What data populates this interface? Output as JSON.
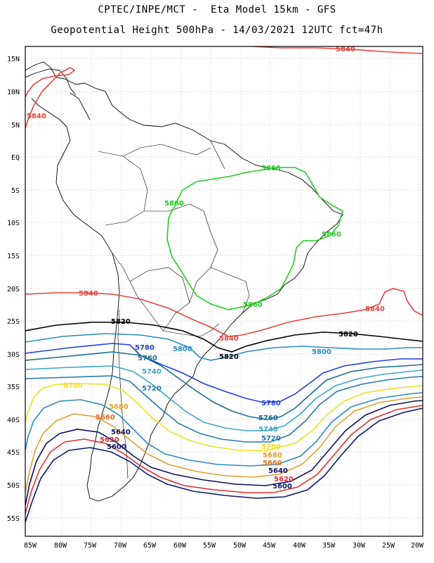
{
  "title_line1": "CPTEC/INPE/MCT -  Eta Model 15km - GFS",
  "title_line2": "Geopotential Height 500hPa - 14/03/2021 12UTC fct=47h",
  "lat_labels": [
    "15N",
    "10N",
    "5N",
    "EQ",
    "5S",
    "10S",
    "15S",
    "20S",
    "25S",
    "30S",
    "35S",
    "40S",
    "45S",
    "50S",
    "55S"
  ],
  "lon_labels": [
    "85W",
    "80W",
    "75W",
    "70W",
    "65W",
    "60W",
    "55W",
    "50W",
    "45W",
    "40W",
    "35W",
    "30W",
    "25W",
    "20W"
  ],
  "contour_colors": {
    "5860": "#22cc22",
    "5840": "#e8423a",
    "5820": "#000000",
    "5800": "#2a8cc0",
    "5780": "#1f3fdc",
    "5760": "#1c6c94",
    "5740": "#3aa6c8",
    "5720": "#2878a8",
    "5700": "#f0e020",
    "5680": "#e0a030",
    "5660": "#e07020",
    "5640": "#101060",
    "5620": "#e03030",
    "5600": "#0a1a6a"
  },
  "contour_labels": [
    {
      "text": "5840",
      "color_key": "5840"
    },
    {
      "text": "5840",
      "color_key": "5840"
    },
    {
      "text": "5840",
      "color_key": "5840"
    },
    {
      "text": "5840",
      "color_key": "5840"
    },
    {
      "text": "5840",
      "color_key": "5840"
    },
    {
      "text": "5860",
      "color_key": "5860"
    },
    {
      "text": "5860",
      "color_key": "5860"
    },
    {
      "text": "5860",
      "color_key": "5860"
    },
    {
      "text": "5860",
      "color_key": "5860"
    },
    {
      "text": "5820",
      "color_key": "5820"
    },
    {
      "text": "5820",
      "color_key": "5820"
    },
    {
      "text": "5820",
      "color_key": "5820"
    },
    {
      "text": "5780",
      "color_key": "5780"
    },
    {
      "text": "5800",
      "color_key": "5800"
    },
    {
      "text": "5800",
      "color_key": "5800"
    },
    {
      "text": "5760",
      "color_key": "5760"
    },
    {
      "text": "5740",
      "color_key": "5740"
    },
    {
      "text": "5720",
      "color_key": "5720"
    },
    {
      "text": "5700",
      "color_key": "5700"
    },
    {
      "text": "5680",
      "color_key": "5680"
    },
    {
      "text": "5660",
      "color_key": "5660"
    },
    {
      "text": "5640",
      "color_key": "5640"
    },
    {
      "text": "5620",
      "color_key": "5620"
    },
    {
      "text": "5600",
      "color_key": "5600"
    },
    {
      "text": "5780",
      "color_key": "5780"
    },
    {
      "text": "5760",
      "color_key": "5760"
    },
    {
      "text": "5740",
      "color_key": "5740"
    },
    {
      "text": "5720",
      "color_key": "5720"
    },
    {
      "text": "5700",
      "color_key": "5700"
    },
    {
      "text": "5680",
      "color_key": "5680"
    },
    {
      "text": "5660",
      "color_key": "5660"
    },
    {
      "text": "5640",
      "color_key": "5640"
    },
    {
      "text": "5620",
      "color_key": "5620"
    },
    {
      "text": "5600",
      "color_key": "5600"
    }
  ]
}
